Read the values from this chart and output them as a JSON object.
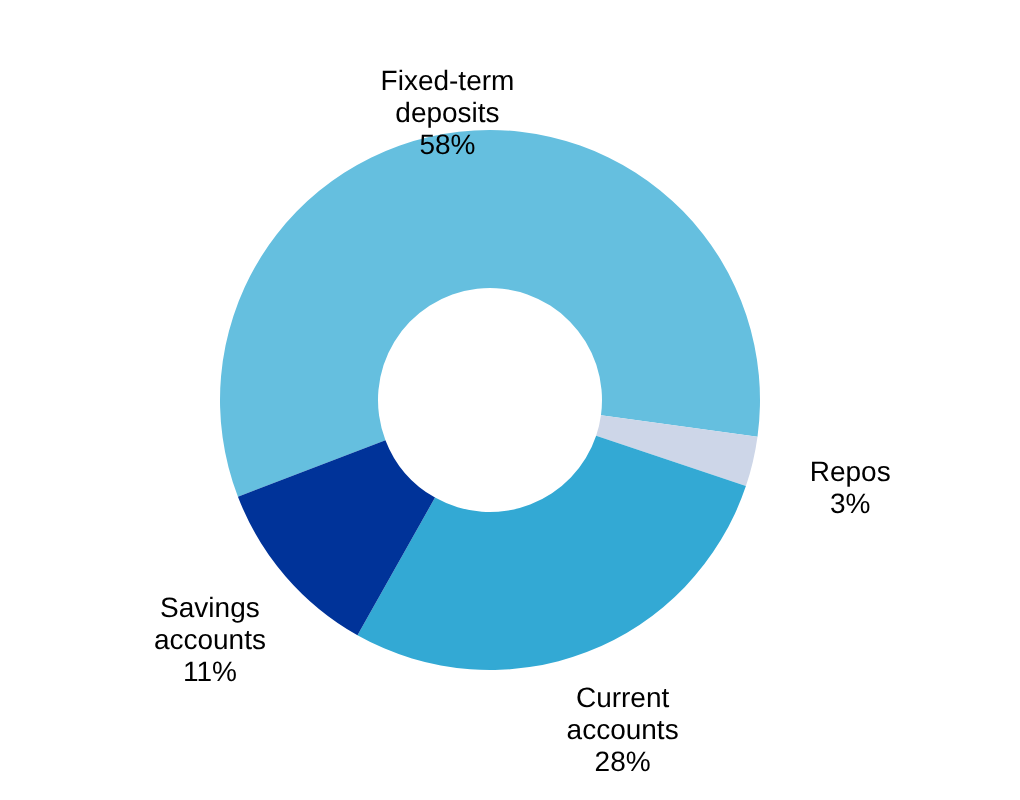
{
  "chart_data": {
    "type": "donut",
    "categories": [
      "Fixed-term deposits",
      "Repos",
      "Current accounts",
      "Savings accounts"
    ],
    "values": [
      58,
      3,
      28,
      11
    ],
    "value_labels": [
      "58%",
      "3%",
      "28%",
      "11%"
    ],
    "colors": [
      "#65bfdf",
      "#cdd6e8",
      "#33a9d4",
      "#003399"
    ]
  }
}
